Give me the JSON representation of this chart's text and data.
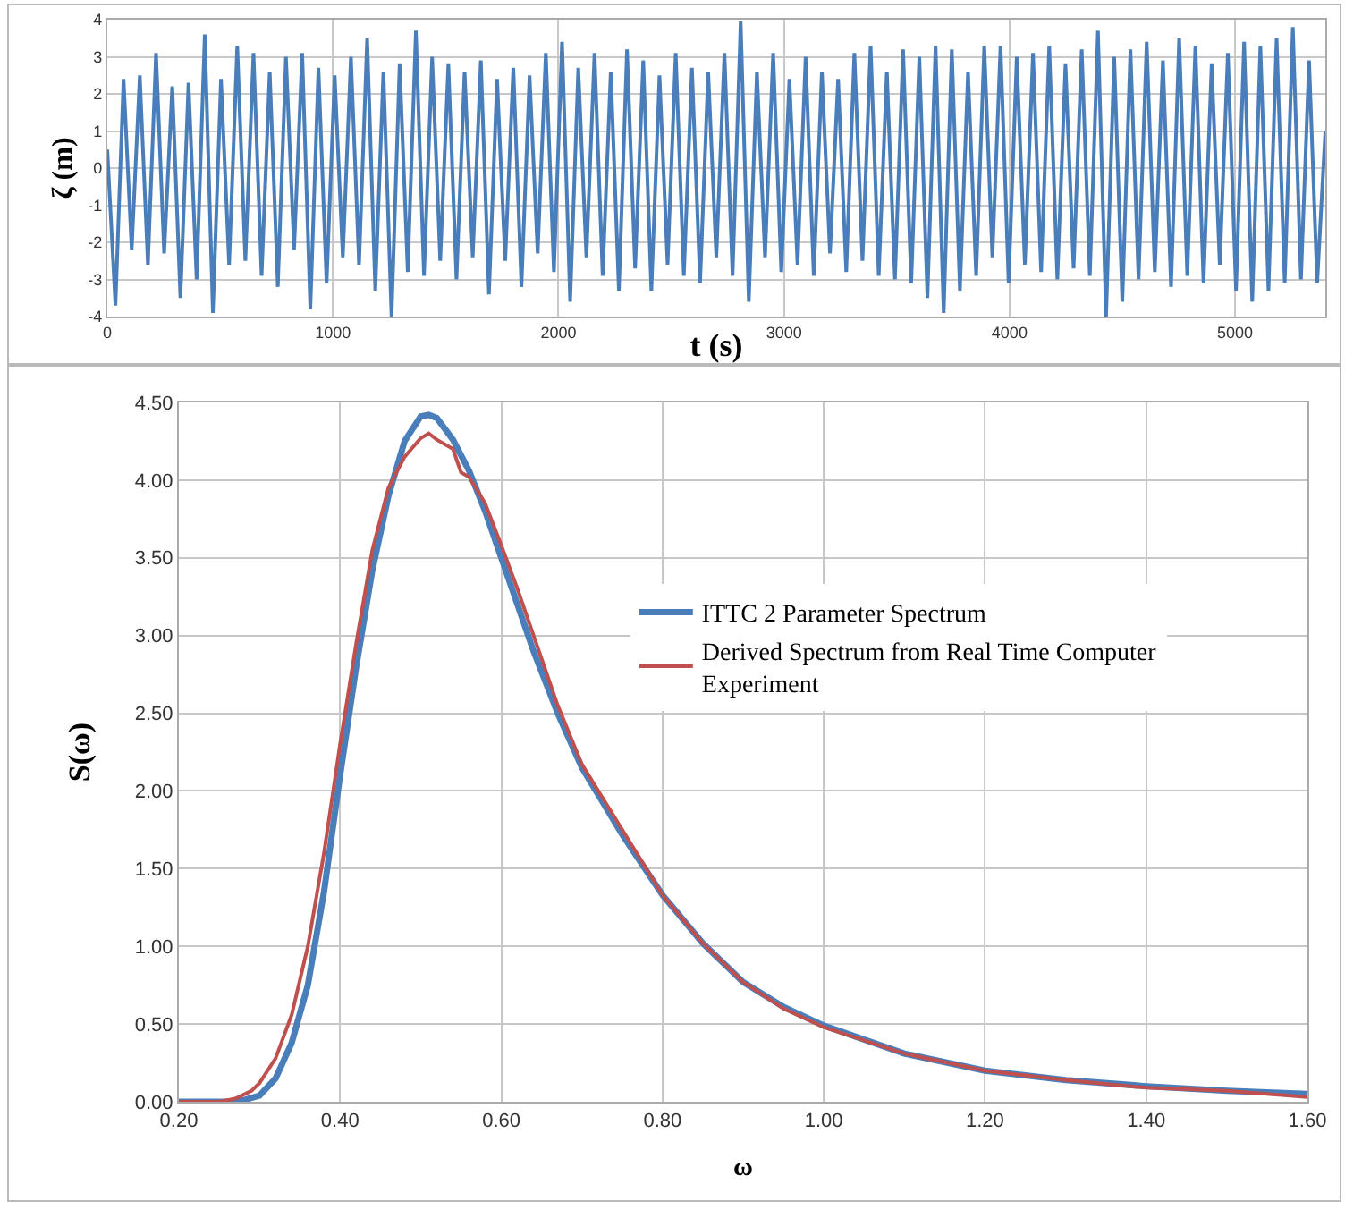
{
  "chart_data": [
    {
      "type": "line",
      "xlabel": "t (s)",
      "ylabel": "ζ (m)",
      "xlim": [
        0,
        5400
      ],
      "xticks": [
        0,
        1000,
        2000,
        3000,
        4000,
        5000
      ],
      "ylim": [
        -4,
        4
      ],
      "yticks": [
        -4,
        -3,
        -2,
        -1,
        0,
        1,
        2,
        3,
        4
      ],
      "grid": true,
      "legend": false,
      "x": [
        0,
        36,
        72,
        108,
        144,
        180,
        216,
        252,
        288,
        324,
        360,
        396,
        432,
        468,
        504,
        540,
        576,
        612,
        648,
        684,
        720,
        756,
        792,
        828,
        864,
        900,
        936,
        972,
        1008,
        1044,
        1080,
        1116,
        1152,
        1188,
        1224,
        1260,
        1296,
        1332,
        1368,
        1404,
        1440,
        1476,
        1512,
        1548,
        1584,
        1620,
        1656,
        1692,
        1728,
        1764,
        1800,
        1836,
        1872,
        1908,
        1944,
        1980,
        2016,
        2052,
        2088,
        2124,
        2160,
        2196,
        2232,
        2268,
        2304,
        2340,
        2376,
        2412,
        2448,
        2484,
        2520,
        2556,
        2592,
        2628,
        2664,
        2700,
        2736,
        2772,
        2808,
        2844,
        2880,
        2916,
        2952,
        2988,
        3024,
        3060,
        3096,
        3132,
        3168,
        3204,
        3240,
        3276,
        3312,
        3348,
        3384,
        3420,
        3456,
        3492,
        3528,
        3564,
        3600,
        3636,
        3672,
        3708,
        3744,
        3780,
        3816,
        3852,
        3888,
        3924,
        3960,
        3996,
        4032,
        4068,
        4104,
        4140,
        4176,
        4212,
        4248,
        4284,
        4320,
        4356,
        4392,
        4428,
        4464,
        4500,
        4536,
        4572,
        4608,
        4644,
        4680,
        4716,
        4752,
        4788,
        4824,
        4860,
        4896,
        4932,
        4968,
        5004,
        5040,
        5076,
        5112,
        5148,
        5184,
        5220,
        5256,
        5292,
        5328,
        5364,
        5400
      ],
      "series": [
        {
          "color": "#4a7ebb",
          "values": [
            0.5,
            -3.7,
            2.4,
            -2.2,
            2.5,
            -2.6,
            3.1,
            -2.3,
            2.2,
            -3.5,
            2.3,
            -3.0,
            3.6,
            -3.9,
            2.4,
            -2.6,
            3.3,
            -2.5,
            3.1,
            -2.9,
            2.6,
            -3.2,
            3.0,
            -2.2,
            3.1,
            -3.8,
            2.7,
            -3.1,
            2.5,
            -2.4,
            3.0,
            -2.6,
            3.5,
            -3.3,
            2.6,
            -4.0,
            2.8,
            -2.8,
            3.7,
            -2.9,
            3.0,
            -2.5,
            2.8,
            -3.0,
            2.6,
            -2.4,
            2.9,
            -3.4,
            2.4,
            -2.5,
            2.7,
            -3.2,
            2.5,
            -2.3,
            3.1,
            -2.8,
            3.4,
            -3.6,
            2.7,
            -2.4,
            3.1,
            -2.9,
            2.6,
            -3.3,
            3.2,
            -2.7,
            2.9,
            -3.3,
            2.5,
            -2.6,
            3.1,
            -2.9,
            2.7,
            -3.1,
            2.6,
            -2.4,
            3.1,
            -2.9,
            3.95,
            -3.6,
            2.6,
            -2.4,
            3.1,
            -2.8,
            2.4,
            -2.6,
            3.0,
            -2.9,
            2.6,
            -2.3,
            2.4,
            -2.8,
            3.1,
            -2.5,
            3.3,
            -2.9,
            2.6,
            -3.0,
            3.2,
            -3.1,
            3.0,
            -3.5,
            3.3,
            -3.9,
            3.2,
            -3.3,
            2.6,
            -2.9,
            3.3,
            -2.4,
            3.3,
            -3.1,
            3.0,
            -2.6,
            3.1,
            -2.8,
            3.3,
            -3.0,
            2.8,
            -2.7,
            3.2,
            -2.9,
            3.7,
            -4.0,
            3.0,
            -3.6,
            3.2,
            -3.0,
            3.4,
            -2.8,
            2.9,
            -3.2,
            3.5,
            -2.9,
            3.3,
            -3.1,
            2.8,
            -2.6,
            3.1,
            -3.3,
            3.4,
            -3.6,
            3.3,
            -3.3,
            3.5,
            -3.1,
            3.8,
            -3.0,
            2.9,
            -3.1,
            1.0
          ]
        }
      ]
    },
    {
      "type": "line",
      "xlabel": "ω",
      "ylabel": "S(ω)",
      "xlim": [
        0.2,
        1.6
      ],
      "xticks": [
        {
          "value": 0.2,
          "label": "0.20"
        },
        {
          "value": 0.4,
          "label": "0.40"
        },
        {
          "value": 0.6,
          "label": "0.60"
        },
        {
          "value": 0.8,
          "label": "0.80"
        },
        {
          "value": 1.0,
          "label": "1.00"
        },
        {
          "value": 1.2,
          "label": "1.20"
        },
        {
          "value": 1.4,
          "label": "1.40"
        },
        {
          "value": 1.6,
          "label": "1.60"
        }
      ],
      "ylim": [
        0,
        4.5
      ],
      "yticks": [
        {
          "value": 0,
          "label": "0.00"
        },
        {
          "value": 0.5,
          "label": "0.50"
        },
        {
          "value": 1.0,
          "label": "1.00"
        },
        {
          "value": 1.5,
          "label": "1.50"
        },
        {
          "value": 2.0,
          "label": "2.00"
        },
        {
          "value": 2.5,
          "label": "2.50"
        },
        {
          "value": 3.0,
          "label": "3.00"
        },
        {
          "value": 3.5,
          "label": "3.50"
        },
        {
          "value": 4.0,
          "label": "4.00"
        },
        {
          "value": 4.5,
          "label": "4.50"
        }
      ],
      "grid": true,
      "legend": "right",
      "series": [
        {
          "name": "ITTC 2 Parameter Spectrum",
          "color": "#4a7ebb",
          "x": [
            0.2,
            0.26,
            0.28,
            0.3,
            0.32,
            0.34,
            0.36,
            0.38,
            0.4,
            0.42,
            0.44,
            0.46,
            0.48,
            0.5,
            0.51,
            0.52,
            0.54,
            0.56,
            0.58,
            0.6,
            0.62,
            0.64,
            0.67,
            0.7,
            0.75,
            0.8,
            0.85,
            0.9,
            0.95,
            1.0,
            1.1,
            1.2,
            1.3,
            1.4,
            1.5,
            1.6
          ],
          "values": [
            0,
            0,
            0.01,
            0.04,
            0.15,
            0.38,
            0.75,
            1.35,
            2.1,
            2.8,
            3.42,
            3.9,
            4.25,
            4.41,
            4.42,
            4.4,
            4.26,
            4.06,
            3.8,
            3.5,
            3.2,
            2.9,
            2.5,
            2.15,
            1.72,
            1.33,
            1.02,
            0.77,
            0.61,
            0.49,
            0.31,
            0.2,
            0.14,
            0.1,
            0.07,
            0.05
          ]
        },
        {
          "name": "Derived Spectrum from Real Time Computer Experiment",
          "color": "#c0504d",
          "x": [
            0.2,
            0.25,
            0.27,
            0.29,
            0.3,
            0.32,
            0.34,
            0.36,
            0.38,
            0.4,
            0.42,
            0.44,
            0.46,
            0.48,
            0.5,
            0.51,
            0.52,
            0.54,
            0.55,
            0.56,
            0.58,
            0.6,
            0.62,
            0.64,
            0.67,
            0.7,
            0.75,
            0.8,
            0.85,
            0.9,
            0.95,
            1.0,
            1.1,
            1.2,
            1.3,
            1.4,
            1.5,
            1.6
          ],
          "values": [
            0,
            0,
            0.02,
            0.07,
            0.12,
            0.28,
            0.56,
            1.0,
            1.6,
            2.3,
            2.95,
            3.55,
            3.95,
            4.15,
            4.27,
            4.3,
            4.26,
            4.2,
            4.05,
            4.02,
            3.85,
            3.58,
            3.3,
            3.0,
            2.55,
            2.17,
            1.75,
            1.33,
            1.02,
            0.77,
            0.6,
            0.48,
            0.31,
            0.2,
            0.14,
            0.09,
            0.07,
            0.03
          ]
        }
      ]
    }
  ]
}
